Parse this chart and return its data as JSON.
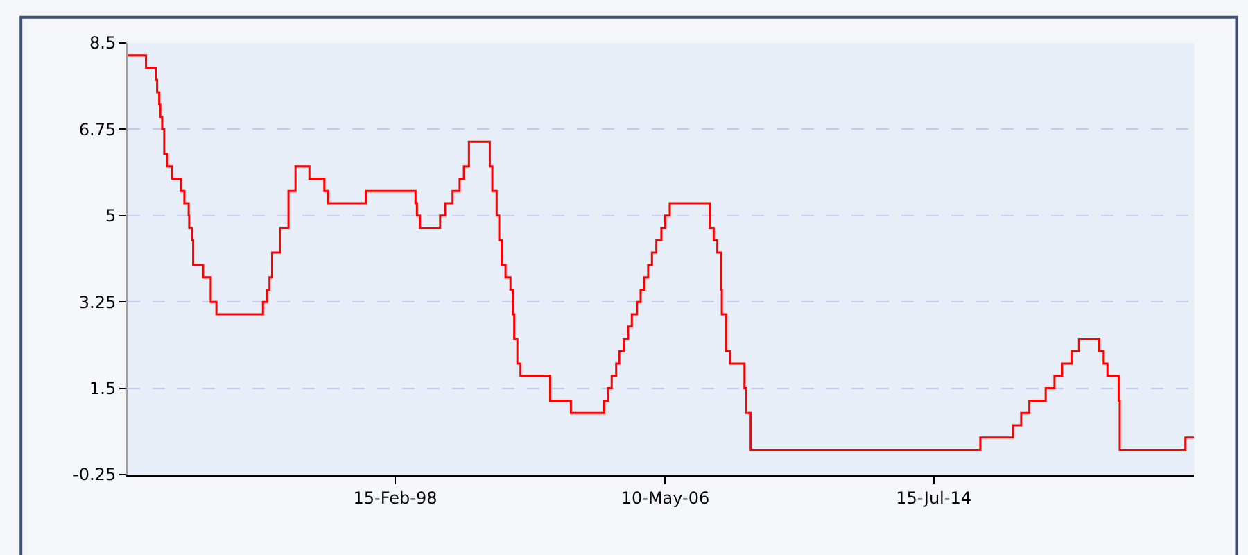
{
  "chart_data": {
    "type": "step",
    "x": [
      "1989-12-20",
      "1990-07-13",
      "1990-10-29",
      "1990-11-14",
      "1990-12-07",
      "1990-12-19",
      "1991-01-09",
      "1991-02-01",
      "1991-03-08",
      "1991-04-30",
      "1991-08-06",
      "1991-09-13",
      "1991-10-31",
      "1991-11-06",
      "1991-12-06",
      "1991-12-20",
      "1992-04-09",
      "1992-07-02",
      "1992-09-04",
      "1994-02-04",
      "1994-03-22",
      "1994-04-18",
      "1994-05-17",
      "1994-08-16",
      "1994-11-15",
      "1995-02-01",
      "1995-07-06",
      "1995-12-19",
      "1996-01-31",
      "1997-03-25",
      "1998-09-29",
      "1998-10-15",
      "1998-11-17",
      "1999-06-30",
      "1999-08-24",
      "1999-11-16",
      "2000-02-02",
      "2000-03-21",
      "2000-05-16",
      "2001-01-03",
      "2001-01-31",
      "2001-03-20",
      "2001-04-18",
      "2001-05-15",
      "2001-06-27",
      "2001-08-21",
      "2001-09-17",
      "2001-10-02",
      "2001-11-06",
      "2001-12-11",
      "2002-11-06",
      "2003-06-25",
      "2004-06-30",
      "2004-08-10",
      "2004-09-21",
      "2004-11-10",
      "2004-12-14",
      "2005-02-02",
      "2005-03-22",
      "2005-05-03",
      "2005-06-30",
      "2005-08-09",
      "2005-09-20",
      "2005-11-01",
      "2005-12-13",
      "2006-01-31",
      "2006-03-28",
      "2006-05-10",
      "2006-06-29",
      "2007-09-18",
      "2007-10-31",
      "2007-12-11",
      "2008-01-22",
      "2008-01-30",
      "2008-03-18",
      "2008-04-30",
      "2008-10-08",
      "2008-10-29",
      "2008-12-16",
      "2015-12-16",
      "2016-12-14",
      "2017-03-15",
      "2017-06-14",
      "2017-12-13",
      "2018-03-21",
      "2018-06-13",
      "2018-09-26",
      "2018-12-19",
      "2019-08-01",
      "2019-09-19",
      "2019-10-31",
      "2020-03-04",
      "2020-03-16",
      "2022-03-17",
      "2022-06-20"
    ],
    "series": [
      {
        "color": "#ff0000",
        "values": [
          8.25,
          8.0,
          7.75,
          7.5,
          7.25,
          7.0,
          6.75,
          6.25,
          6.0,
          5.75,
          5.5,
          5.25,
          5.0,
          4.75,
          4.5,
          4.0,
          3.75,
          3.25,
          3.0,
          3.25,
          3.5,
          3.75,
          4.25,
          4.75,
          5.5,
          6.0,
          5.75,
          5.5,
          5.25,
          5.5,
          5.25,
          5.0,
          4.75,
          5.0,
          5.25,
          5.5,
          5.75,
          6.0,
          6.5,
          6.0,
          5.5,
          5.0,
          4.5,
          4.0,
          3.75,
          3.5,
          3.0,
          2.5,
          2.0,
          1.75,
          1.25,
          1.0,
          1.25,
          1.5,
          1.75,
          2.0,
          2.25,
          2.5,
          2.75,
          3.0,
          3.25,
          3.5,
          3.75,
          4.0,
          4.25,
          4.5,
          4.75,
          5.0,
          5.25,
          4.75,
          4.5,
          4.25,
          3.5,
          3.0,
          2.25,
          2.0,
          1.5,
          1.0,
          0.25,
          0.5,
          0.75,
          1.0,
          1.25,
          1.5,
          1.75,
          2.0,
          2.25,
          2.5,
          2.25,
          2.0,
          1.75,
          1.25,
          0.25,
          0.5,
          0.5
        ]
      }
    ],
    "xlim": [
      "1989-12-20",
      "2022-06-20"
    ],
    "xticks": [
      {
        "value": "1998-02-15",
        "label": "15-Feb-98"
      },
      {
        "value": "2006-05-10",
        "label": "10-May-06"
      },
      {
        "value": "2014-07-15",
        "label": "15-Jul-14"
      }
    ],
    "ylim": [
      -0.25,
      8.5
    ],
    "yticks": [
      -0.25,
      1.5,
      3.25,
      5,
      6.75,
      8.5
    ],
    "grid": "y",
    "marker": "none",
    "line_style": "solid"
  }
}
